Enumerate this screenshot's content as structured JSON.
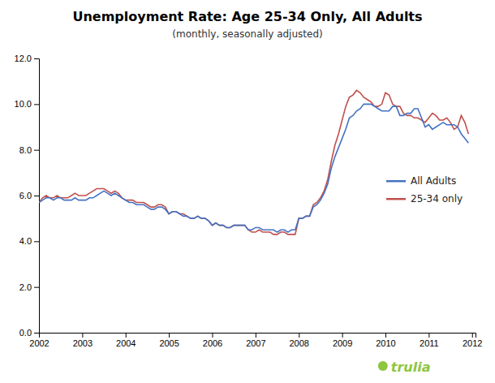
{
  "chart_data": {
    "type": "line",
    "title": "Unemployment Rate: Age 25-34 Only, All Adults",
    "subtitle": "(monthly, seasonally adjusted)",
    "annotations": [
      {
        "text": "trulia",
        "color": "#8DC63F"
      }
    ],
    "xlim": [
      2002.0,
      2012.08
    ],
    "ylim": [
      0.0,
      12.0
    ],
    "xticks": [
      2002,
      2003,
      2004,
      2005,
      2006,
      2007,
      2008,
      2009,
      2010,
      2011,
      2012
    ],
    "yticks": [
      {
        "value": 0.0,
        "label": "0.0"
      },
      {
        "value": 2.0,
        "label": "2.0"
      },
      {
        "value": 4.0,
        "label": "4.0"
      },
      {
        "value": 6.0,
        "label": "6.0"
      },
      {
        "value": 8.0,
        "label": "8.0"
      },
      {
        "value": 10.0,
        "label": "10.0"
      },
      {
        "value": 12.0,
        "label": "12.0"
      }
    ],
    "grid": false,
    "legend": "right",
    "x": [
      2002,
      2002.0833333333,
      2002.1666666667,
      2002.25,
      2002.3333333333,
      2002.4166666667,
      2002.5,
      2002.5833333333,
      2002.6666666667,
      2002.75,
      2002.8333333333,
      2002.9166666667,
      2003,
      2003.0833333333,
      2003.1666666667,
      2003.25,
      2003.3333333333,
      2003.4166666667,
      2003.5,
      2003.5833333333,
      2003.6666666667,
      2003.75,
      2003.8333333333,
      2003.9166666667,
      2004,
      2004.0833333333,
      2004.1666666667,
      2004.25,
      2004.3333333333,
      2004.4166666667,
      2004.5,
      2004.5833333333,
      2004.6666666667,
      2004.75,
      2004.8333333333,
      2004.9166666667,
      2005,
      2005.0833333333,
      2005.1666666667,
      2005.25,
      2005.3333333333,
      2005.4166666667,
      2005.5,
      2005.5833333333,
      2005.6666666667,
      2005.75,
      2005.8333333333,
      2005.9166666667,
      2006,
      2006.0833333333,
      2006.1666666667,
      2006.25,
      2006.3333333333,
      2006.4166666667,
      2006.5,
      2006.5833333333,
      2006.6666666667,
      2006.75,
      2006.8333333333,
      2006.9166666667,
      2007,
      2007.0833333333,
      2007.1666666667,
      2007.25,
      2007.3333333333,
      2007.4166666667,
      2007.5,
      2007.5833333333,
      2007.6666666667,
      2007.75,
      2007.8333333333,
      2007.9166666667,
      2008,
      2008.0833333333,
      2008.1666666667,
      2008.25,
      2008.3333333333,
      2008.4166666667,
      2008.5,
      2008.5833333333,
      2008.6666666667,
      2008.75,
      2008.8333333333,
      2008.9166666667,
      2009,
      2009.0833333333,
      2009.1666666667,
      2009.25,
      2009.3333333333,
      2009.4166666667,
      2009.5,
      2009.5833333333,
      2009.6666666667,
      2009.75,
      2009.8333333333,
      2009.9166666667,
      2010,
      2010.0833333333,
      2010.1666666667,
      2010.25,
      2010.3333333333,
      2010.4166666667,
      2010.5,
      2010.5833333333,
      2010.6666666667,
      2010.75,
      2010.8333333333,
      2010.9166666667,
      2011,
      2011.0833333333,
      2011.1666666667,
      2011.25,
      2011.3333333333,
      2011.4166666667,
      2011.5,
      2011.5833333333,
      2011.6666666667,
      2011.75,
      2011.8333333333,
      2011.9166666667
    ],
    "series": [
      {
        "name": "All Adults",
        "color": "#4472C4",
        "values": [
          5.7,
          5.8,
          5.9,
          5.9,
          5.8,
          5.9,
          5.9,
          5.8,
          5.8,
          5.8,
          5.9,
          5.8,
          5.8,
          5.8,
          5.9,
          5.9,
          6.0,
          6.1,
          6.2,
          6.1,
          6.0,
          6.1,
          6.0,
          5.9,
          5.8,
          5.7,
          5.7,
          5.6,
          5.6,
          5.6,
          5.5,
          5.4,
          5.4,
          5.5,
          5.5,
          5.4,
          5.2,
          5.3,
          5.3,
          5.2,
          5.1,
          5.1,
          5.0,
          5.0,
          5.1,
          5.0,
          5.0,
          4.9,
          4.7,
          4.8,
          4.7,
          4.7,
          4.6,
          4.6,
          4.7,
          4.7,
          4.7,
          4.7,
          4.5,
          4.5,
          4.6,
          4.6,
          4.5,
          4.5,
          4.5,
          4.5,
          4.4,
          4.5,
          4.5,
          4.4,
          4.5,
          4.5,
          5.0,
          5.0,
          5.1,
          5.1,
          5.5,
          5.6,
          5.8,
          6.1,
          6.5,
          7.2,
          7.7,
          8.1,
          8.5,
          8.9,
          9.4,
          9.5,
          9.7,
          9.8,
          10.0,
          10.0,
          10.0,
          9.9,
          9.8,
          9.7,
          9.7,
          9.7,
          9.9,
          9.9,
          9.5,
          9.5,
          9.6,
          9.6,
          9.8,
          9.8,
          9.4,
          9.0,
          9.1,
          8.9,
          9.0,
          9.1,
          9.2,
          9.1,
          9.1,
          9.1,
          9.0,
          8.7,
          8.5,
          8.3
        ]
      },
      {
        "name": "25-34 only",
        "color": "#C0504D",
        "values": [
          5.7,
          5.9,
          6.0,
          5.9,
          5.9,
          6.0,
          5.9,
          5.9,
          5.9,
          6.0,
          6.1,
          6.0,
          6.0,
          6.0,
          6.1,
          6.2,
          6.3,
          6.3,
          6.3,
          6.2,
          6.1,
          6.2,
          6.1,
          5.9,
          5.8,
          5.8,
          5.8,
          5.7,
          5.7,
          5.7,
          5.6,
          5.5,
          5.5,
          5.6,
          5.6,
          5.5,
          5.2,
          5.3,
          5.3,
          5.2,
          5.2,
          5.1,
          5.0,
          5.0,
          5.1,
          5.0,
          5.0,
          4.9,
          4.7,
          4.8,
          4.7,
          4.7,
          4.6,
          4.6,
          4.7,
          4.7,
          4.7,
          4.7,
          4.5,
          4.4,
          4.4,
          4.5,
          4.4,
          4.4,
          4.4,
          4.3,
          4.3,
          4.4,
          4.4,
          4.3,
          4.3,
          4.3,
          5.0,
          5.0,
          5.1,
          5.1,
          5.6,
          5.7,
          5.9,
          6.2,
          6.7,
          7.5,
          8.2,
          8.7,
          9.3,
          9.9,
          10.3,
          10.4,
          10.6,
          10.5,
          10.3,
          10.2,
          10.1,
          9.9,
          9.9,
          10.0,
          10.5,
          10.4,
          10.0,
          9.9,
          9.9,
          9.6,
          9.5,
          9.5,
          9.4,
          9.4,
          9.3,
          9.2,
          9.4,
          9.6,
          9.5,
          9.3,
          9.3,
          9.4,
          9.2,
          8.9,
          9.0,
          9.5,
          9.2,
          8.7
        ]
      }
    ]
  }
}
